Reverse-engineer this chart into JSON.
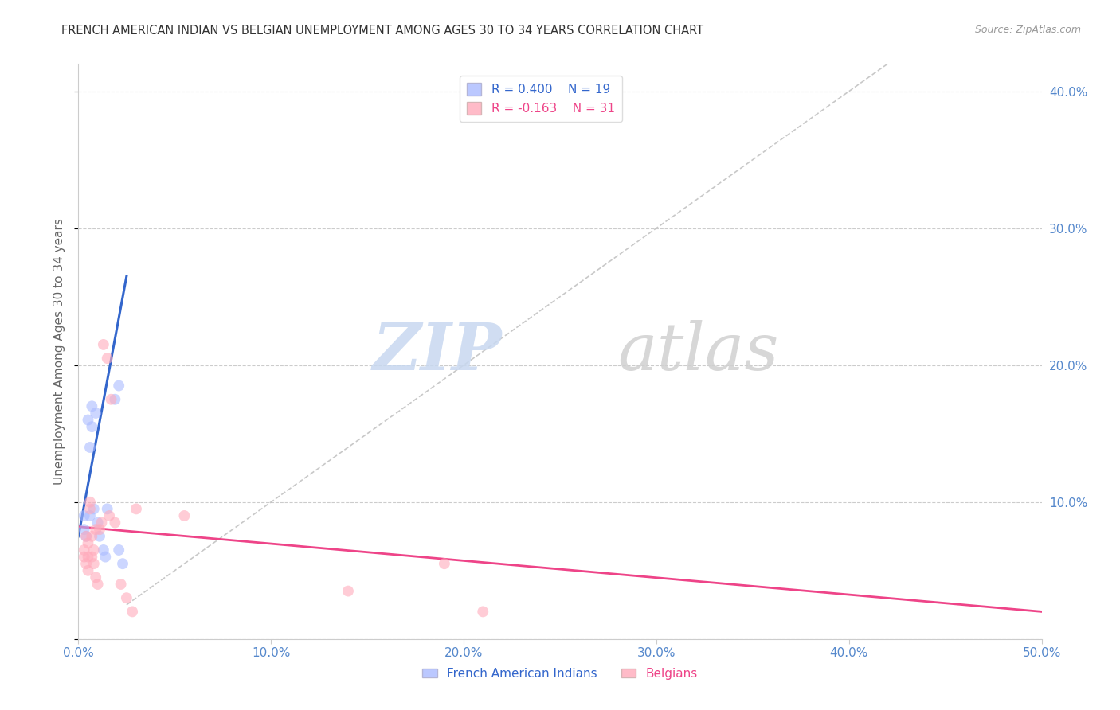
{
  "title": "FRENCH AMERICAN INDIAN VS BELGIAN UNEMPLOYMENT AMONG AGES 30 TO 34 YEARS CORRELATION CHART",
  "source": "Source: ZipAtlas.com",
  "ylabel": "Unemployment Among Ages 30 to 34 years",
  "xlim": [
    0.0,
    0.5
  ],
  "ylim": [
    0.0,
    0.42
  ],
  "xticks": [
    0.0,
    0.1,
    0.2,
    0.3,
    0.4,
    0.5
  ],
  "xticklabels": [
    "0.0%",
    "10.0%",
    "20.0%",
    "30.0%",
    "40.0%",
    "50.0%"
  ],
  "yticks": [
    0.0,
    0.1,
    0.2,
    0.3,
    0.4
  ],
  "yticklabels_right": [
    "",
    "10.0%",
    "20.0%",
    "30.0%",
    "40.0%"
  ],
  "background_color": "#ffffff",
  "legend_r1": "R = 0.400",
  "legend_n1": "N = 19",
  "legend_r2": "R = -0.163",
  "legend_n2": "N = 31",
  "blue_color": "#aabbff",
  "pink_color": "#ffaabb",
  "blue_line_color": "#3366cc",
  "pink_line_color": "#ee4488",
  "dashed_line_color": "#bbbbbb",
  "title_color": "#333333",
  "axis_label_color": "#666666",
  "tick_color": "#5588cc",
  "french_american_indians_x": [
    0.003,
    0.003,
    0.004,
    0.005,
    0.006,
    0.006,
    0.007,
    0.007,
    0.008,
    0.009,
    0.01,
    0.011,
    0.013,
    0.014,
    0.015,
    0.019,
    0.021,
    0.021,
    0.023
  ],
  "french_american_indians_y": [
    0.09,
    0.08,
    0.075,
    0.16,
    0.14,
    0.09,
    0.17,
    0.155,
    0.095,
    0.165,
    0.085,
    0.075,
    0.065,
    0.06,
    0.095,
    0.175,
    0.185,
    0.065,
    0.055
  ],
  "belgians_x": [
    0.003,
    0.003,
    0.004,
    0.004,
    0.005,
    0.005,
    0.005,
    0.006,
    0.006,
    0.007,
    0.007,
    0.008,
    0.008,
    0.009,
    0.009,
    0.01,
    0.011,
    0.012,
    0.013,
    0.015,
    0.016,
    0.017,
    0.019,
    0.022,
    0.025,
    0.028,
    0.03,
    0.055,
    0.14,
    0.19,
    0.21
  ],
  "belgians_y": [
    0.065,
    0.06,
    0.075,
    0.055,
    0.07,
    0.06,
    0.05,
    0.1,
    0.095,
    0.075,
    0.06,
    0.065,
    0.055,
    0.08,
    0.045,
    0.04,
    0.08,
    0.085,
    0.215,
    0.205,
    0.09,
    0.175,
    0.085,
    0.04,
    0.03,
    0.02,
    0.095,
    0.09,
    0.035,
    0.055,
    0.02
  ],
  "blue_trend_x": [
    0.0,
    0.025
  ],
  "blue_trend_y": [
    0.075,
    0.265
  ],
  "pink_trend_x": [
    0.0,
    0.5
  ],
  "pink_trend_y": [
    0.082,
    0.02
  ],
  "dashed_line_x": [
    0.025,
    0.42
  ],
  "dashed_line_y": [
    0.025,
    0.42
  ],
  "marker_size": 100
}
